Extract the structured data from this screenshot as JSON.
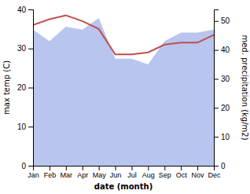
{
  "chart_data": {
    "type": "line",
    "xlabel": "date (month)",
    "ylabel": "max temp (C)",
    "y2label": "med. precipitation (kg/m2)",
    "categories": [
      "Jan",
      "Feb",
      "Mar",
      "Apr",
      "May",
      "Jun",
      "Jul",
      "Aug",
      "Sep",
      "Oct",
      "Nov",
      "Dec"
    ],
    "series": [
      {
        "type": "area",
        "axis": "y2",
        "color": "#b8c5ee",
        "values": [
          47,
          43,
          48,
          47,
          51,
          37,
          37,
          35,
          43,
          46,
          46,
          47
        ]
      },
      {
        "type": "line",
        "color": "#c0504d",
        "values": [
          36.0,
          37.5,
          38.5,
          37.0,
          35.0,
          28.5,
          28.5,
          29.0,
          31.0,
          31.5,
          31.5,
          33.5
        ]
      }
    ],
    "ylim": [
      0,
      40
    ],
    "yticks": [
      0,
      10,
      20,
      30,
      40
    ],
    "y2lim": [
      0,
      54
    ],
    "y2ticks": [
      0,
      10,
      20,
      30,
      40,
      50
    ]
  }
}
